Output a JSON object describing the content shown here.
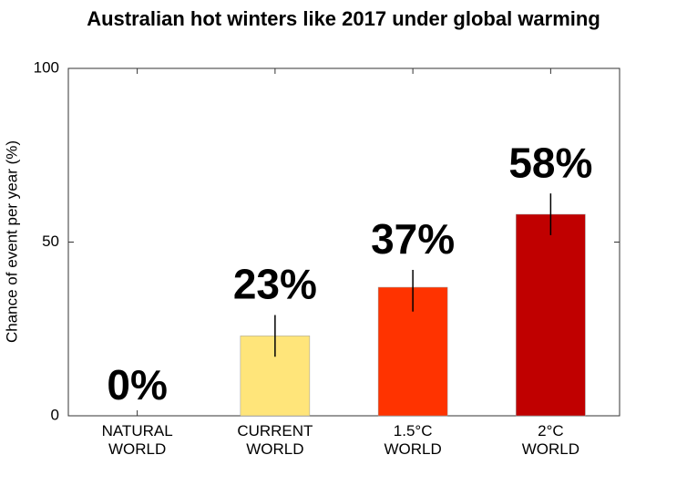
{
  "chart_data": {
    "type": "bar",
    "title": "Australian hot winters like 2017 under global warming",
    "y_label": "Chance of event per year (%)",
    "categories": [
      [
        "NATURAL",
        "WORLD"
      ],
      [
        "CURRENT",
        "WORLD"
      ],
      [
        "1.5°C",
        "WORLD"
      ],
      [
        "2°C",
        "WORLD"
      ]
    ],
    "values": [
      0,
      23,
      37,
      58
    ],
    "value_labels": [
      "0%",
      "23%",
      "37%",
      "58%"
    ],
    "error_low": [
      null,
      17,
      30,
      52
    ],
    "error_high": [
      null,
      29,
      42,
      64
    ],
    "colors": [
      "#ffffff",
      "#ffe57a",
      "#ff3300",
      "#c00000"
    ],
    "ylim": [
      0,
      100
    ],
    "yticks": [
      0,
      50,
      100
    ]
  }
}
